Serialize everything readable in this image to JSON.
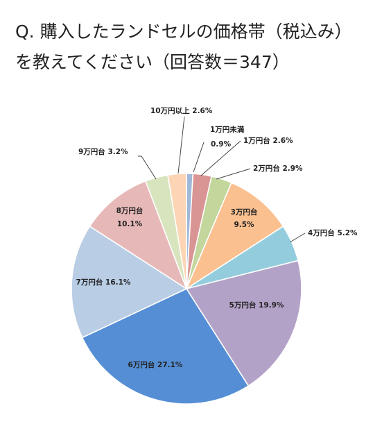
{
  "question": {
    "line1": "Q.  購入したランドセルの価格帯（税込み）",
    "line2": "を教えてください（回答数＝347）"
  },
  "chart_data": {
    "type": "pie",
    "title": "",
    "slices": [
      {
        "label": "1万円未満",
        "value": 0.9,
        "display": "0.9%",
        "color": "#9fb8d8"
      },
      {
        "label": "1万円台",
        "value": 2.6,
        "display": "2.6%",
        "color": "#d99594"
      },
      {
        "label": "2万円台",
        "value": 2.9,
        "display": "2.9%",
        "color": "#c3d69b"
      },
      {
        "label": "3万円台",
        "value": 9.5,
        "display": "9.5%",
        "color": "#fac090"
      },
      {
        "label": "4万円台",
        "value": 5.2,
        "display": "5.2%",
        "color": "#93cddd"
      },
      {
        "label": "5万円台",
        "value": 19.9,
        "display": "19.9%",
        "color": "#b3a2c7"
      },
      {
        "label": "6万円台",
        "value": 27.1,
        "display": "27.1%",
        "color": "#558ed5"
      },
      {
        "label": "7万円台",
        "value": 16.1,
        "display": "16.1%",
        "color": "#b9cde5"
      },
      {
        "label": "8万円台",
        "value": 10.1,
        "display": "10.1%",
        "color": "#e6b9b8"
      },
      {
        "label": "9万円台",
        "value": 3.2,
        "display": "3.2%",
        "color": "#d7e4bd"
      },
      {
        "label": "10万円以上",
        "value": 2.6,
        "display": "2.6%",
        "color": "#fcd5b5"
      }
    ]
  }
}
